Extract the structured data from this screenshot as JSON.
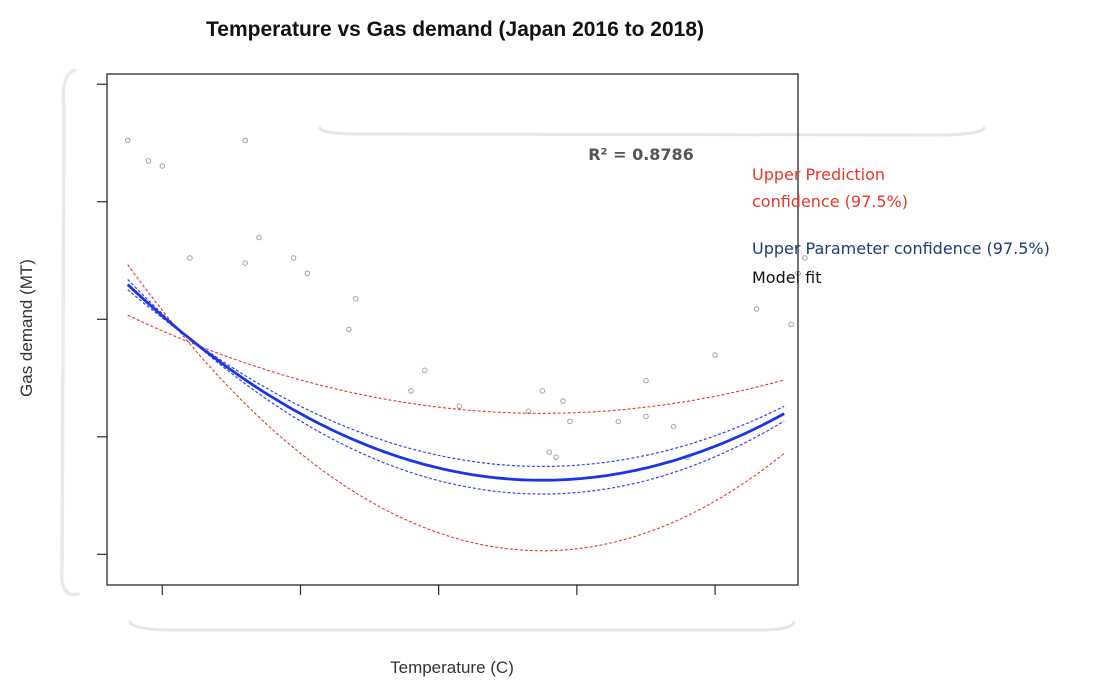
{
  "chart_data": {
    "type": "scatter",
    "title": "Temperature vs Gas demand (Japan 2016 to 2018)",
    "xlabel": "Temperature (C)",
    "ylabel": "Gas demand (MT)",
    "xlim": [
      0,
      100
    ],
    "ylim": [
      0,
      100
    ],
    "grid": false,
    "r_squared_label": "R² = 0.8786",
    "legend": [
      {
        "label_lines": [
          "Upper Prediction",
          "confidence (97.5%)"
        ],
        "color": "#e8362a"
      },
      {
        "label_lines": [
          "Upper Parameter confidence (97.5%)"
        ],
        "color": "#1f3a7a"
      },
      {
        "label_lines": [
          "Model fit"
        ],
        "color": "#111111"
      }
    ],
    "curves": {
      "model_fit": {
        "a": 40.5,
        "b": 78.8,
        "c": 200,
        "color": "#1a35e6"
      },
      "param_upper": {
        "a": 43.2,
        "b": 77.8,
        "c": 200,
        "color": "#3344ee"
      },
      "param_lower": {
        "a": 37.8,
        "b": 79.8,
        "c": 200,
        "color": "#3344ee"
      },
      "pred_upper": {
        "a": 53.6,
        "b": 72.8,
        "c": 200,
        "color": "#e8362a"
      },
      "pred_lower": {
        "a": 26.7,
        "b": 82.7,
        "c": 200,
        "color": "#e8362a"
      }
    },
    "curve_x_range": [
      3,
      98
    ],
    "points": [
      {
        "x": 3,
        "y": 87
      },
      {
        "x": 6,
        "y": 83
      },
      {
        "x": 8,
        "y": 82
      },
      {
        "x": 12,
        "y": 64
      },
      {
        "x": 20,
        "y": 87
      },
      {
        "x": 20,
        "y": 63
      },
      {
        "x": 22,
        "y": 68
      },
      {
        "x": 27,
        "y": 64
      },
      {
        "x": 29,
        "y": 61
      },
      {
        "x": 35,
        "y": 50
      },
      {
        "x": 36,
        "y": 56
      },
      {
        "x": 44,
        "y": 38
      },
      {
        "x": 46,
        "y": 42
      },
      {
        "x": 51,
        "y": 35
      },
      {
        "x": 61,
        "y": 34
      },
      {
        "x": 63,
        "y": 38
      },
      {
        "x": 64,
        "y": 26
      },
      {
        "x": 65,
        "y": 25
      },
      {
        "x": 66,
        "y": 36
      },
      {
        "x": 67,
        "y": 32
      },
      {
        "x": 74,
        "y": 32
      },
      {
        "x": 78,
        "y": 40
      },
      {
        "x": 78,
        "y": 33
      },
      {
        "x": 82,
        "y": 31
      },
      {
        "x": 84,
        "y": 25
      },
      {
        "x": 88,
        "y": 45
      },
      {
        "x": 94,
        "y": 54
      },
      {
        "x": 99,
        "y": 51
      },
      {
        "x": 100,
        "y": 61
      },
      {
        "x": 101,
        "y": 64
      }
    ],
    "x_tick_values": [
      8,
      28,
      48,
      68,
      88
    ],
    "y_tick_values": [
      98,
      75,
      52,
      29,
      6
    ]
  }
}
